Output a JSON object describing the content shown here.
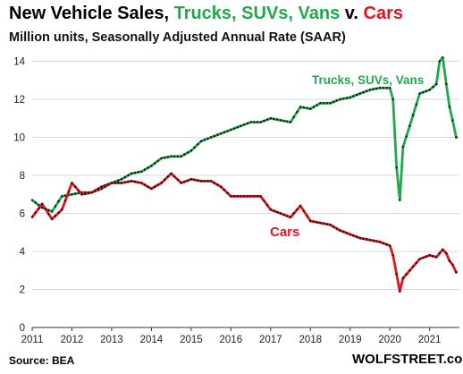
{
  "header": {
    "title_part1": "New Vehicle Sales, ",
    "title_part2": "Trucks, SUVs, Vans",
    "title_part3": " v. ",
    "title_part4": "Cars",
    "subtitle": "Million units, Seasonally Adjusted Annual Rate (SAAR)"
  },
  "footer": {
    "source": "Source: BEA",
    "brand": "WOLFSTREET.com"
  },
  "colors": {
    "trucks": "#1eaa4b",
    "cars": "#e5121b",
    "marker": "#111111",
    "title_black": "#000000"
  },
  "chart_data": {
    "type": "line",
    "title": "New Vehicle Sales, Trucks, SUVs, Vans v. Cars",
    "subtitle": "Million units, Seasonally Adjusted Annual Rate (SAAR)",
    "xlabel": "",
    "ylabel": "",
    "ylim": [
      0,
      14.4
    ],
    "yticks": [
      0,
      2,
      4,
      6,
      8,
      10,
      12,
      14
    ],
    "xlim": [
      2011.0,
      2021.75
    ],
    "xticks": [
      2011,
      2012,
      2013,
      2014,
      2015,
      2016,
      2017,
      2018,
      2019,
      2020,
      2021
    ],
    "grid": "horizontal",
    "legend": "inline labels",
    "series": [
      {
        "name": "Trucks, SUVs, Vans",
        "color": "#1eaa4b",
        "label_position": "above-right",
        "points": [
          [
            2011.0,
            6.7
          ],
          [
            2011.25,
            6.3
          ],
          [
            2011.5,
            6.1
          ],
          [
            2011.75,
            6.9
          ],
          [
            2012.0,
            7.0
          ],
          [
            2012.25,
            7.1
          ],
          [
            2012.5,
            7.1
          ],
          [
            2012.75,
            7.3
          ],
          [
            2013.0,
            7.6
          ],
          [
            2013.25,
            7.8
          ],
          [
            2013.5,
            8.1
          ],
          [
            2013.75,
            8.2
          ],
          [
            2014.0,
            8.5
          ],
          [
            2014.25,
            8.9
          ],
          [
            2014.5,
            9.0
          ],
          [
            2014.75,
            9.0
          ],
          [
            2015.0,
            9.3
          ],
          [
            2015.25,
            9.8
          ],
          [
            2015.5,
            10.0
          ],
          [
            2015.75,
            10.2
          ],
          [
            2016.0,
            10.4
          ],
          [
            2016.25,
            10.6
          ],
          [
            2016.5,
            10.8
          ],
          [
            2016.75,
            10.8
          ],
          [
            2017.0,
            11.0
          ],
          [
            2017.25,
            10.9
          ],
          [
            2017.5,
            10.8
          ],
          [
            2017.75,
            11.6
          ],
          [
            2018.0,
            11.5
          ],
          [
            2018.25,
            11.8
          ],
          [
            2018.5,
            11.8
          ],
          [
            2018.75,
            12.0
          ],
          [
            2019.0,
            12.1
          ],
          [
            2019.25,
            12.3
          ],
          [
            2019.5,
            12.5
          ],
          [
            2019.75,
            12.6
          ],
          [
            2020.0,
            12.6
          ],
          [
            2020.08,
            12.0
          ],
          [
            2020.17,
            8.4
          ],
          [
            2020.25,
            6.7
          ],
          [
            2020.33,
            9.5
          ],
          [
            2020.5,
            10.6
          ],
          [
            2020.75,
            12.3
          ],
          [
            2021.0,
            12.5
          ],
          [
            2021.17,
            12.8
          ],
          [
            2021.25,
            14.0
          ],
          [
            2021.33,
            14.2
          ],
          [
            2021.42,
            12.8
          ],
          [
            2021.5,
            11.6
          ],
          [
            2021.58,
            10.9
          ],
          [
            2021.67,
            10.0
          ]
        ]
      },
      {
        "name": "Cars",
        "color": "#e5121b",
        "label_position": "below-left",
        "points": [
          [
            2011.0,
            5.8
          ],
          [
            2011.25,
            6.5
          ],
          [
            2011.5,
            5.7
          ],
          [
            2011.75,
            6.2
          ],
          [
            2012.0,
            7.6
          ],
          [
            2012.25,
            7.0
          ],
          [
            2012.5,
            7.1
          ],
          [
            2012.75,
            7.4
          ],
          [
            2013.0,
            7.6
          ],
          [
            2013.25,
            7.6
          ],
          [
            2013.5,
            7.7
          ],
          [
            2013.75,
            7.6
          ],
          [
            2014.0,
            7.3
          ],
          [
            2014.25,
            7.6
          ],
          [
            2014.5,
            8.1
          ],
          [
            2014.75,
            7.6
          ],
          [
            2015.0,
            7.8
          ],
          [
            2015.25,
            7.7
          ],
          [
            2015.5,
            7.7
          ],
          [
            2015.75,
            7.4
          ],
          [
            2016.0,
            6.9
          ],
          [
            2016.25,
            6.9
          ],
          [
            2016.5,
            6.9
          ],
          [
            2016.75,
            6.9
          ],
          [
            2017.0,
            6.2
          ],
          [
            2017.25,
            6.0
          ],
          [
            2017.5,
            5.8
          ],
          [
            2017.75,
            6.4
          ],
          [
            2018.0,
            5.6
          ],
          [
            2018.25,
            5.5
          ],
          [
            2018.5,
            5.4
          ],
          [
            2018.75,
            5.1
          ],
          [
            2019.0,
            4.9
          ],
          [
            2019.25,
            4.7
          ],
          [
            2019.5,
            4.6
          ],
          [
            2019.75,
            4.5
          ],
          [
            2020.0,
            4.3
          ],
          [
            2020.08,
            3.8
          ],
          [
            2020.17,
            2.8
          ],
          [
            2020.25,
            1.9
          ],
          [
            2020.33,
            2.6
          ],
          [
            2020.5,
            3.0
          ],
          [
            2020.75,
            3.6
          ],
          [
            2021.0,
            3.8
          ],
          [
            2021.17,
            3.7
          ],
          [
            2021.25,
            3.9
          ],
          [
            2021.33,
            4.1
          ],
          [
            2021.42,
            3.9
          ],
          [
            2021.5,
            3.5
          ],
          [
            2021.58,
            3.3
          ],
          [
            2021.67,
            2.9
          ]
        ]
      }
    ]
  }
}
